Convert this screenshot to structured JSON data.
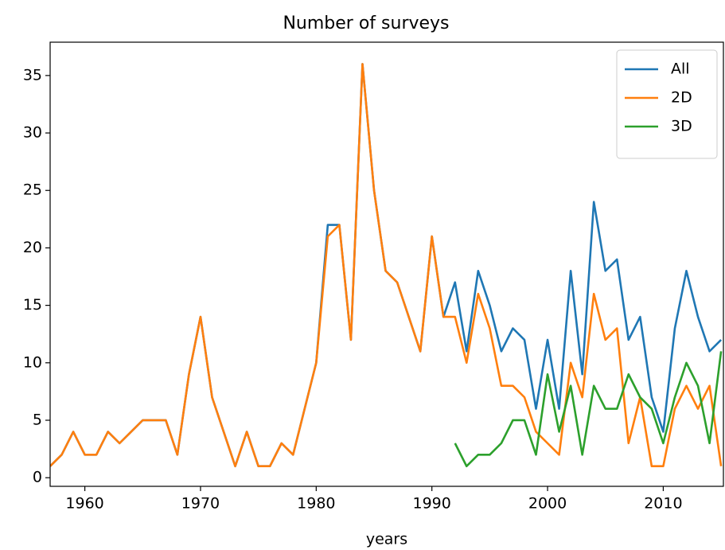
{
  "chart_data": {
    "type": "line",
    "title": "Number of surveys",
    "x_label": "years",
    "x": [
      1957,
      1958,
      1959,
      1960,
      1961,
      1962,
      1963,
      1964,
      1965,
      1966,
      1967,
      1968,
      1969,
      1970,
      1971,
      1972,
      1973,
      1974,
      1975,
      1976,
      1977,
      1978,
      1979,
      1980,
      1981,
      1982,
      1983,
      1984,
      1985,
      1986,
      1987,
      1988,
      1989,
      1990,
      1991,
      1992,
      1993,
      1994,
      1995,
      1996,
      1997,
      1998,
      1999,
      2000,
      2001,
      2002,
      2003,
      2004,
      2005,
      2006,
      2007,
      2008,
      2009,
      2010,
      2011,
      2012,
      2013,
      2014,
      2015
    ],
    "series": [
      {
        "name": "All",
        "color": "#1f77b4",
        "values": [
          1,
          2,
          4,
          2,
          2,
          4,
          3,
          4,
          5,
          5,
          5,
          2,
          9,
          14,
          7,
          4,
          1,
          4,
          1,
          1,
          3,
          2,
          6,
          10,
          22,
          22,
          12,
          36,
          25,
          18,
          17,
          14,
          11,
          21,
          14,
          17,
          11,
          18,
          15,
          11,
          13,
          12,
          6,
          12,
          6,
          18,
          9,
          24,
          18,
          19,
          12,
          14,
          7,
          4,
          13,
          18,
          14,
          11,
          12
        ]
      },
      {
        "name": "2D",
        "color": "#ff7f0e",
        "values": [
          1,
          2,
          4,
          2,
          2,
          4,
          3,
          4,
          5,
          5,
          5,
          2,
          9,
          14,
          7,
          4,
          1,
          4,
          1,
          1,
          3,
          2,
          6,
          10,
          21,
          22,
          12,
          36,
          25,
          18,
          17,
          14,
          11,
          21,
          14,
          14,
          10,
          16,
          13,
          8,
          8,
          7,
          4,
          3,
          2,
          10,
          7,
          16,
          12,
          13,
          3,
          7,
          1,
          1,
          6,
          8,
          6,
          8,
          1
        ]
      },
      {
        "name": "3D",
        "color": "#2ca02c",
        "values": [
          null,
          null,
          null,
          null,
          null,
          null,
          null,
          null,
          null,
          null,
          null,
          null,
          null,
          null,
          null,
          null,
          null,
          null,
          null,
          null,
          null,
          null,
          null,
          null,
          null,
          null,
          null,
          null,
          null,
          null,
          null,
          null,
          null,
          null,
          null,
          3,
          1,
          2,
          2,
          3,
          5,
          5,
          2,
          9,
          4,
          8,
          2,
          8,
          6,
          6,
          9,
          7,
          6,
          3,
          7,
          10,
          8,
          3,
          11
        ]
      }
    ],
    "xlim": [
      1957,
      2015.2
    ],
    "ylim": [
      -0.75,
      37.9
    ],
    "xticks": [
      1960,
      1970,
      1980,
      1990,
      2000,
      2010
    ],
    "yticks": [
      0,
      5,
      10,
      15,
      20,
      25,
      30,
      35
    ],
    "legend": "upper right"
  }
}
